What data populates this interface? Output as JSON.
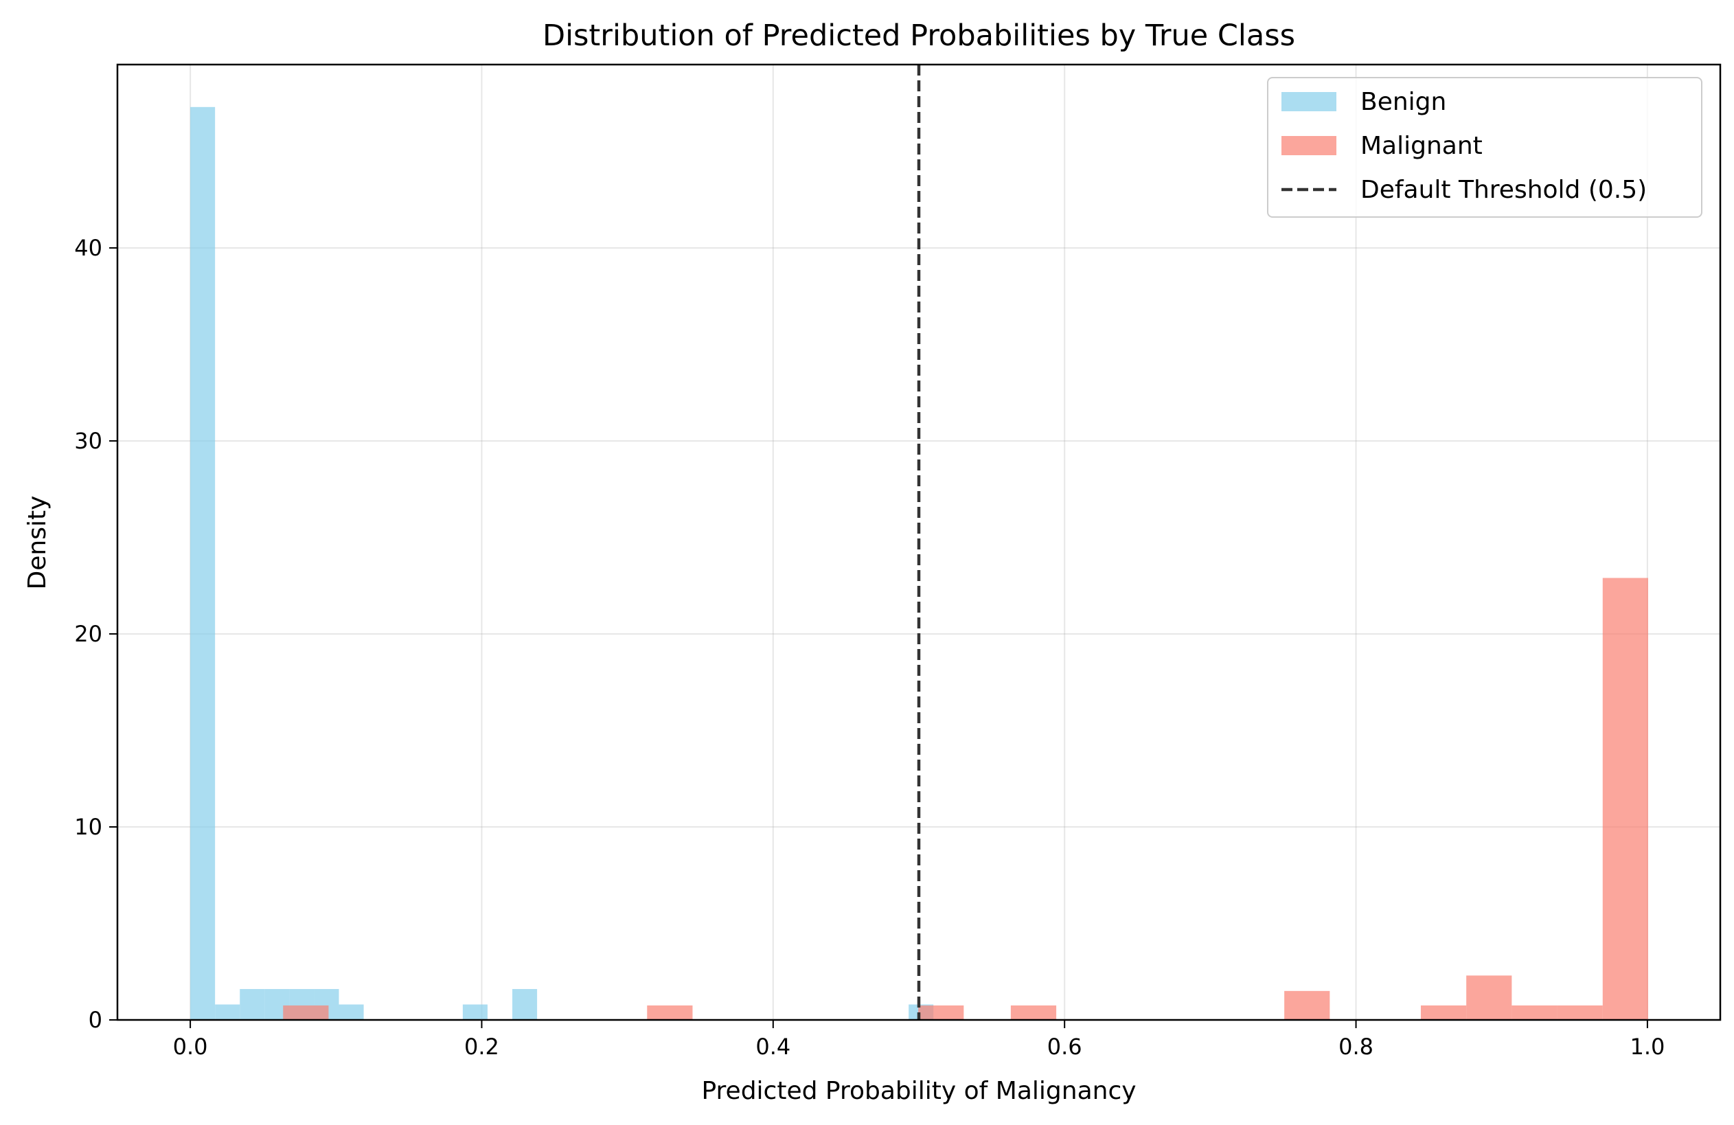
{
  "chart_data": {
    "type": "histogram",
    "title": "Distribution of Predicted Probabilities by True Class",
    "xlabel": "Predicted Probability of Malignancy",
    "ylabel": "Density",
    "xlim": [
      -0.05,
      1.05
    ],
    "ylim": [
      0,
      49.5
    ],
    "xticks": [
      "0.0",
      "0.2",
      "0.4",
      "0.6",
      "0.8",
      "1.0"
    ],
    "xtick_values": [
      0.0,
      0.2,
      0.4,
      0.6,
      0.8,
      1.0
    ],
    "yticks": [
      "0",
      "10",
      "20",
      "30",
      "40"
    ],
    "ytick_values": [
      0,
      10,
      20,
      30,
      40
    ],
    "grid": true,
    "legend_position": "top-right",
    "series": [
      {
        "name": "Benign",
        "color": "#87CEEB",
        "opacity": 0.7,
        "bins": [
          {
            "x0": 0.0,
            "x1": 0.017,
            "value": 47.3
          },
          {
            "x0": 0.017,
            "x1": 0.034,
            "value": 0.8
          },
          {
            "x0": 0.034,
            "x1": 0.051,
            "value": 1.6
          },
          {
            "x0": 0.051,
            "x1": 0.068,
            "value": 1.6
          },
          {
            "x0": 0.068,
            "x1": 0.085,
            "value": 1.6
          },
          {
            "x0": 0.085,
            "x1": 0.102,
            "value": 1.6
          },
          {
            "x0": 0.102,
            "x1": 0.119,
            "value": 0.8
          },
          {
            "x0": 0.187,
            "x1": 0.204,
            "value": 0.8
          },
          {
            "x0": 0.221,
            "x1": 0.238,
            "value": 1.6
          },
          {
            "x0": 0.493,
            "x1": 0.51,
            "value": 0.8
          }
        ]
      },
      {
        "name": "Malignant",
        "color": "#FA8072",
        "opacity": 0.7,
        "bins": [
          {
            "x0": 0.0637,
            "x1": 0.0949,
            "value": 0.75
          },
          {
            "x0": 0.3135,
            "x1": 0.3447,
            "value": 0.75
          },
          {
            "x0": 0.4996,
            "x1": 0.5308,
            "value": 0.75
          },
          {
            "x0": 0.5631,
            "x1": 0.5943,
            "value": 0.75
          },
          {
            "x0": 0.7508,
            "x1": 0.782,
            "value": 1.5
          },
          {
            "x0": 0.8445,
            "x1": 0.8757,
            "value": 0.75
          },
          {
            "x0": 0.8757,
            "x1": 0.9069,
            "value": 2.3
          },
          {
            "x0": 0.9069,
            "x1": 0.9381,
            "value": 0.75
          },
          {
            "x0": 0.9381,
            "x1": 0.9693,
            "value": 0.75
          },
          {
            "x0": 0.9693,
            "x1": 1.0005,
            "value": 22.9
          }
        ]
      }
    ],
    "annotations": [
      {
        "type": "vline",
        "x": 0.5,
        "label": "Default Threshold (0.5)",
        "color": "#333333",
        "style": "dashed"
      }
    ]
  }
}
